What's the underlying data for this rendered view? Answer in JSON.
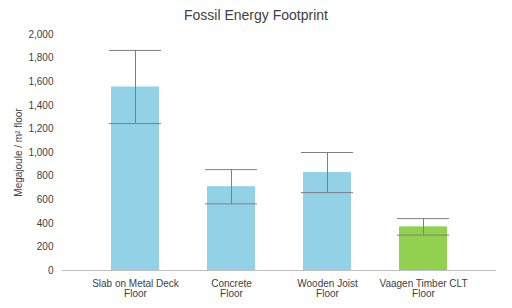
{
  "chart_data": {
    "type": "bar",
    "title": "Fossil Energy Footprint",
    "y_label": "Megajoule / m² floor",
    "categories": [
      "Slab on Metal Deck Floor",
      "Concrete Floor",
      "Wooden Joist Floor",
      "Vaagen Timber CLT Floor"
    ],
    "values": [
      1555,
      710,
      830,
      370
    ],
    "errors": [
      310,
      145,
      170,
      70
    ],
    "colors": [
      "#92d1e6",
      "#92d1e6",
      "#92d1e6",
      "#92d050"
    ],
    "ylim": [
      0,
      2000
    ],
    "yticks": [
      0,
      200,
      400,
      600,
      800,
      {
        "value": 1000,
        "label": "1,000"
      },
      {
        "value": 1200,
        "label": "1,200"
      },
      {
        "value": 1400,
        "label": "1,400"
      },
      {
        "value": 1600,
        "label": "1,600"
      },
      {
        "value": 1800,
        "label": "1,800"
      },
      {
        "value": 2000,
        "label": "2,000"
      }
    ],
    "grid": false
  }
}
